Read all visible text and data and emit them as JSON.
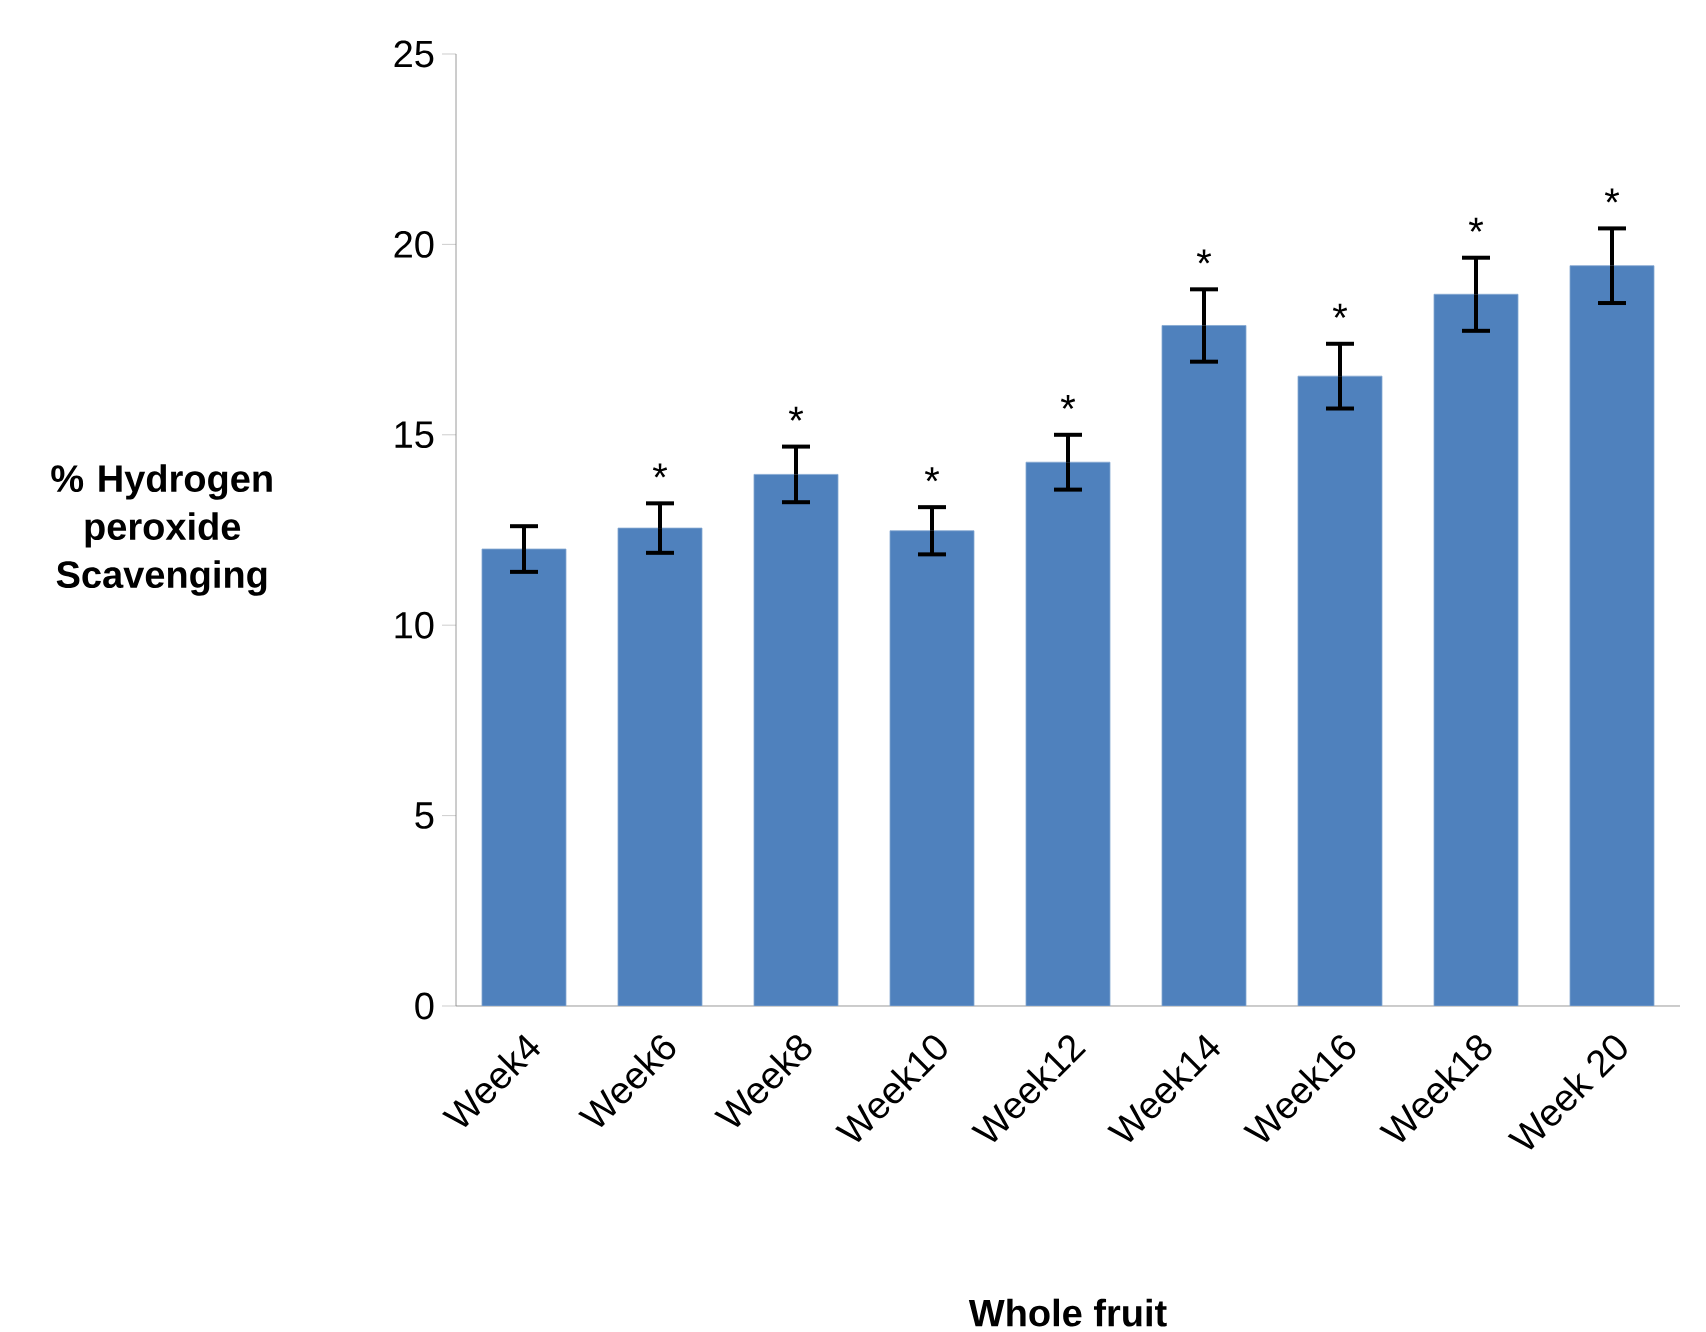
{
  "chart_data": {
    "type": "bar",
    "xlabel": "Whole fruit",
    "ylabel": "% Hydrogen peroxide Scavenging",
    "categories": [
      "Week4",
      "Week6",
      "Week8",
      "Week10",
      "Week12",
      "Week14",
      "Week16",
      "Week18",
      "Week 20"
    ],
    "values": [
      12.0,
      12.55,
      13.96,
      12.48,
      14.28,
      17.87,
      16.54,
      18.69,
      19.44
    ],
    "errors": [
      0.6,
      0.65,
      0.73,
      0.62,
      0.72,
      0.95,
      0.85,
      0.96,
      0.98
    ],
    "color": "#4f81bd",
    "ylim": [
      0,
      25
    ],
    "yticks": [
      0,
      5,
      10,
      15,
      20,
      25
    ],
    "grid": false,
    "annotations": [
      "*",
      "*",
      "*",
      "*",
      "*",
      "*",
      "*",
      "*"
    ]
  }
}
